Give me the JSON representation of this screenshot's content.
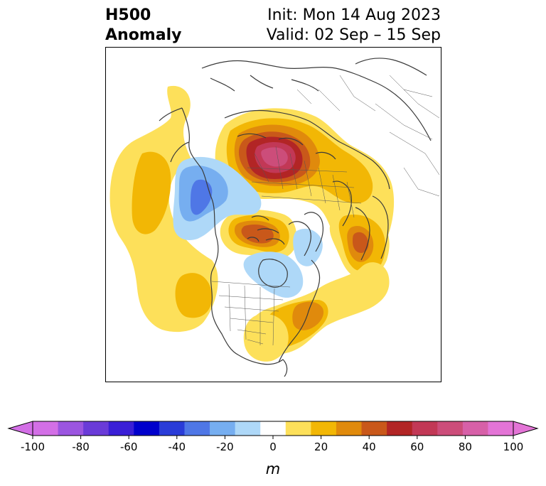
{
  "title": {
    "left_line1": "H500",
    "left_line2": "Anomaly",
    "right_line1": "Init: Mon 14 Aug 2023",
    "right_line2": "Valid: 02 Sep – 15 Sep"
  },
  "colorbar": {
    "unit_label": "m",
    "ticks": [
      "-100",
      "-80",
      "-60",
      "-40",
      "-20",
      "0",
      "20",
      "40",
      "60",
      "80",
      "100"
    ],
    "levels": [
      -100,
      -90,
      -80,
      -70,
      -60,
      -50,
      -40,
      -30,
      -20,
      -10,
      10,
      20,
      30,
      40,
      50,
      60,
      70,
      80,
      90,
      100
    ],
    "colors": [
      "#d36fe6",
      "#9b55e0",
      "#6a3bd8",
      "#3a1fd6",
      "#0000cc",
      "#2a3cd8",
      "#4f77e6",
      "#76aef0",
      "#aed8f8",
      "#ffffff",
      "#fde05a",
      "#f2b705",
      "#e08a0c",
      "#c9581a",
      "#b22525",
      "#c23856",
      "#cc4d7a",
      "#d760a8",
      "#e374d6"
    ],
    "extend_low_color": "#d36fe6",
    "extend_high_color": "#e374d6"
  },
  "colors": {
    "yellow": "#fde05a",
    "gold": "#f2b705",
    "orange": "#e08a0c",
    "dark_orange": "#c9581a",
    "red": "#b22525",
    "crimson": "#c23856",
    "pink": "#cc4d7a",
    "light_blue": "#aed8f8",
    "mid_blue": "#76aef0",
    "blue": "#4f77e6",
    "coast": "#3a3a3a"
  }
}
